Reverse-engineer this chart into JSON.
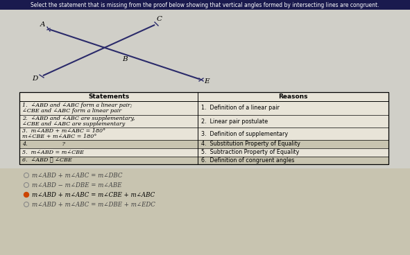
{
  "title": "Select the statement that is missing from the proof below showing that vertical angles formed by intersecting lines are congruent.",
  "title_bg": "#1a1a4e",
  "title_color": "#ffffff",
  "diagram_bg": "#d0cfc8",
  "table_bg": "#e8e4d8",
  "table_header_bg": "#e8e4d8",
  "row_alt_bg": "#c8c4b0",
  "option_bg": "#c8c4b0",
  "statements_header": "Statements",
  "reasons_header": "Reasons",
  "rows": [
    {
      "statement": "1.  ∠ABD and ∠ABC form a linear pair;\n    ∠CBE and ∠ABC form a linear pair",
      "reason": "1.  Definition of a linear pair"
    },
    {
      "statement": "2.  ∠ABD and ∠ABC are supplementary,\n    ∠CBE and ∠ABC are supplementary",
      "reason": "2.  Linear pair postulate"
    },
    {
      "statement": "3.  m∠ABD + m∠ABC = 180°\n    m∠CBE + m∠ABC = 180°",
      "reason": "3.  Definition of supplementary"
    },
    {
      "statement": "4.                    ?",
      "reason": "4.  Substitution Property of Equality"
    },
    {
      "statement": "5.  m∠ABD = m∠CBE",
      "reason": "5.  Subtraction Property of Equality"
    },
    {
      "statement": "6.  ∠ABD ≅ ∠CBE",
      "reason": "6.  Definition of congruent angles"
    }
  ],
  "options": [
    {
      "text": "m∠ABD + m∠ABC = m∠DBC",
      "selected": false
    },
    {
      "text": "m∠ABD − m∠DBE = m∠ABE",
      "selected": false
    },
    {
      "text": "m∠ABD + m∠ABC = m∠CBE + m∠ABC",
      "selected": true
    },
    {
      "text": "m∠ABD + m∠ABC = m∠DBE + m∠EDC",
      "selected": false
    }
  ],
  "selected_dot_color": "#cc4400",
  "unselected_dot_color": "#888888",
  "line_color": "#2a2a6a",
  "font_color_dark": "#111111",
  "font_color_option": "#222222"
}
